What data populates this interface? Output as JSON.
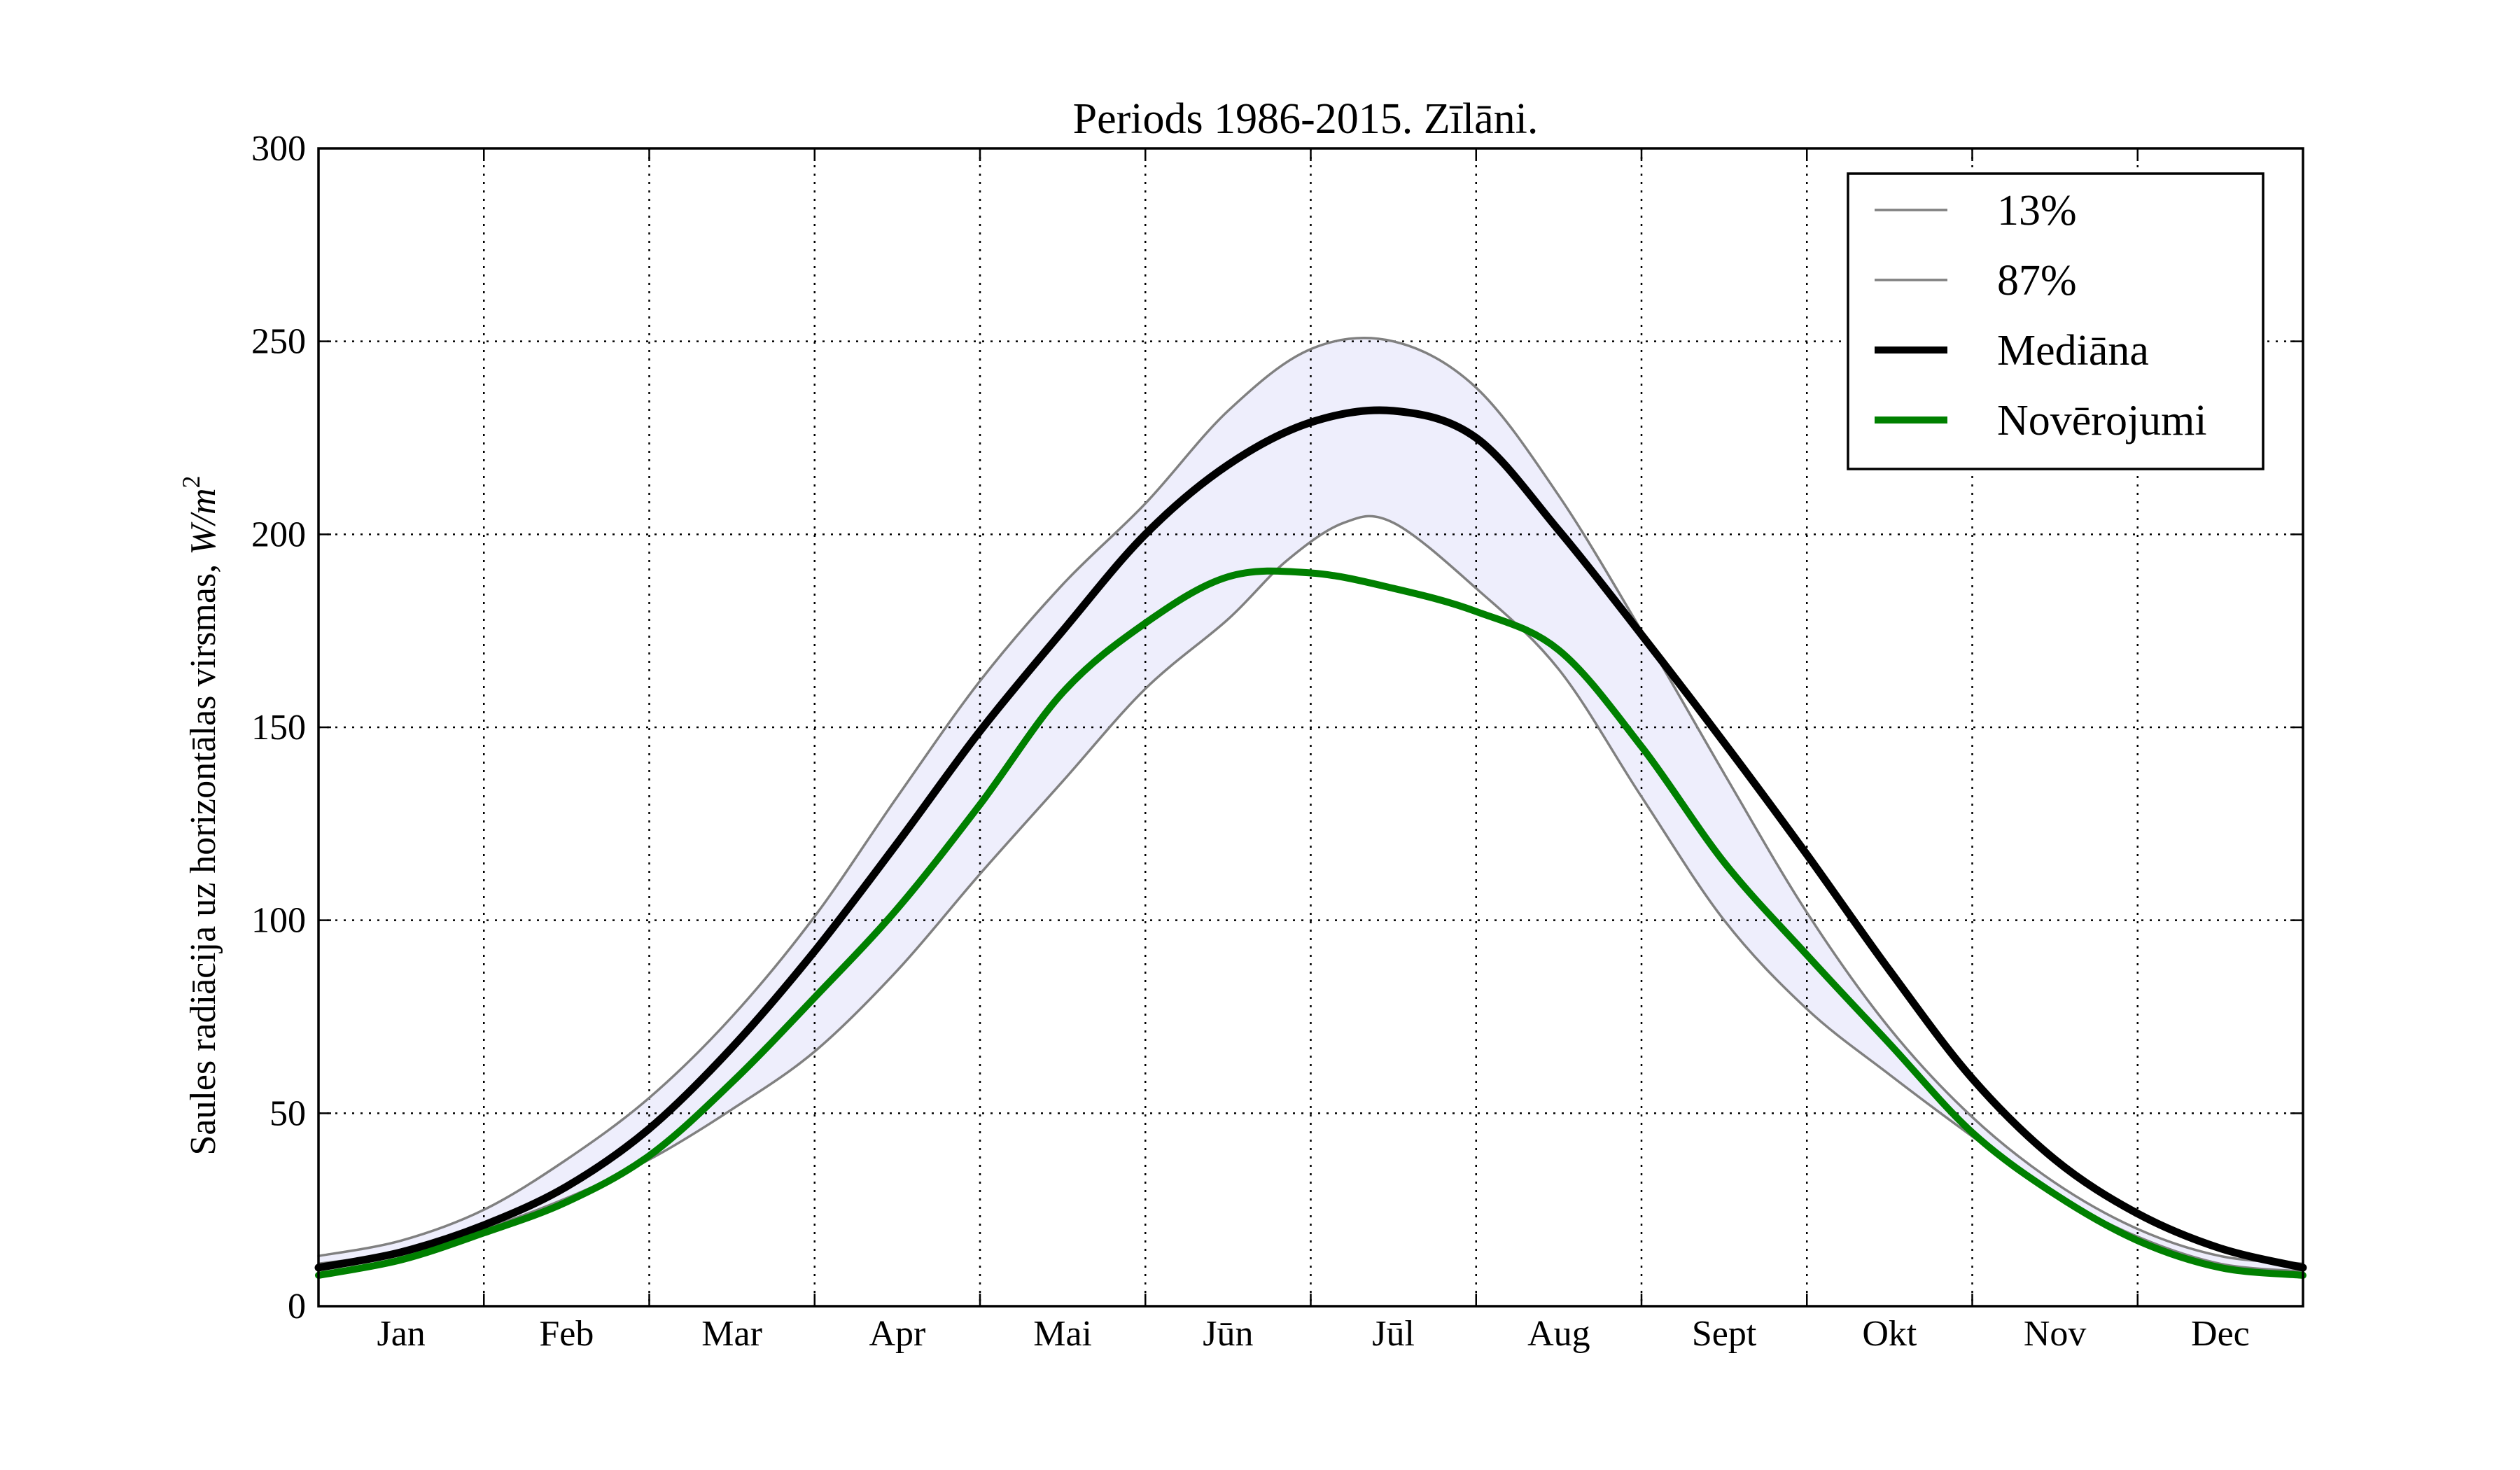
{
  "chart_data": {
    "type": "line",
    "title": "Periods 1986-2015. Zīlāni.",
    "xlabel": "",
    "ylabel": "Saules radiācija uz horizontālas virsmas, W/m²",
    "ylabel_text": "Saules radiācija uz horizontālas virsmas, ",
    "ylabel_unit_var": "W/m",
    "ylabel_unit_exp": "2",
    "xlim": [
      0,
      12
    ],
    "ylim": [
      0,
      300
    ],
    "yticks": [
      "0",
      "50",
      "100",
      "150",
      "200",
      "250",
      "300"
    ],
    "month_labels": [
      "Jan",
      "Feb",
      "Mar",
      "Apr",
      "Mai",
      "Jūn",
      "Jūl",
      "Aug",
      "Sept",
      "Okt",
      "Nov",
      "Dec"
    ],
    "grid": true,
    "legend_position": "top-right",
    "band_color": "#eeeefc",
    "series": [
      {
        "name": "13%",
        "color": "#808080",
        "x": [
          0,
          0.5,
          1,
          1.5,
          2,
          2.5,
          3,
          3.5,
          4,
          4.5,
          5,
          5.5,
          5.85,
          6.2,
          6.5,
          7,
          7.5,
          8,
          8.5,
          9,
          9.5,
          10,
          10.5,
          11,
          11.5,
          12
        ],
        "y": [
          11,
          14,
          20,
          28,
          38,
          51,
          66,
          87,
          112,
          136,
          160,
          178,
          193,
          203,
          203,
          186,
          165,
          132,
          100,
          77,
          60,
          44,
          29,
          18,
          11,
          9
        ]
      },
      {
        "name": "87%",
        "color": "#808080",
        "x": [
          0,
          0.5,
          1,
          1.5,
          2,
          2.5,
          3,
          3.5,
          4,
          4.5,
          5,
          5.5,
          6,
          6.5,
          7,
          7.5,
          8,
          8.5,
          9,
          9.5,
          10,
          10.5,
          11,
          11.5,
          12
        ],
        "y": [
          13,
          17,
          25,
          38,
          54,
          75,
          101,
          132,
          162,
          187,
          208,
          232,
          248,
          250,
          238,
          210,
          175,
          138,
          102,
          72,
          49,
          32,
          20,
          13,
          11
        ]
      },
      {
        "name": "Mediāna",
        "color": "#000000",
        "x": [
          0,
          0.5,
          1,
          1.5,
          2,
          2.5,
          3,
          3.5,
          4,
          4.5,
          5,
          5.5,
          6,
          6.5,
          7,
          7.5,
          8,
          8.5,
          9,
          9.5,
          10,
          10.5,
          11,
          11.5,
          12
        ],
        "y": [
          10,
          14,
          21,
          31,
          46,
          67,
          92,
          120,
          149,
          175,
          200,
          218,
          229,
          232,
          225,
          201,
          174,
          146,
          117,
          87,
          59,
          38,
          24,
          15,
          10
        ]
      },
      {
        "name": "Novērojumi",
        "color": "#008000",
        "x": [
          0,
          0.5,
          1,
          1.5,
          2,
          2.5,
          3,
          3.5,
          4,
          4.5,
          5,
          5.5,
          6,
          6.5,
          7,
          7.5,
          8,
          8.5,
          9,
          9.5,
          10,
          10.5,
          11,
          11.5,
          12
        ],
        "y": [
          8,
          12,
          19,
          27,
          39,
          58,
          80,
          103,
          130,
          159,
          177,
          189,
          190,
          186,
          180,
          170,
          145,
          115,
          91,
          68,
          45,
          29,
          17,
          10,
          8
        ]
      }
    ]
  }
}
